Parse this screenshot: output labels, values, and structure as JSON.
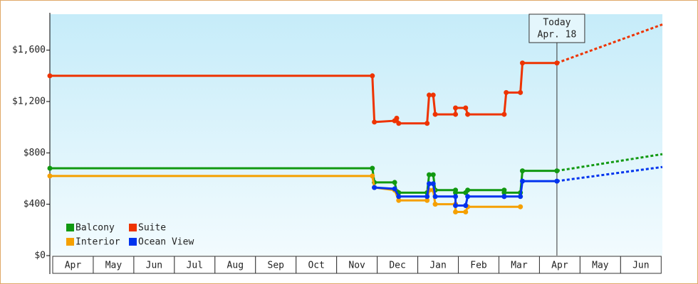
{
  "chart_data": {
    "type": "line",
    "xlim": [
      0,
      15.1
    ],
    "ylim": [
      0,
      1880
    ],
    "yticks": [
      {
        "value": 0,
        "label": "$0"
      },
      {
        "value": 400,
        "label": "$400"
      },
      {
        "value": 800,
        "label": "$800"
      },
      {
        "value": 1200,
        "label": "$1,200"
      },
      {
        "value": 1600,
        "label": "$1,600"
      }
    ],
    "xticks": [
      {
        "value": 0.5,
        "label": "Apr"
      },
      {
        "value": 1.5,
        "label": "May"
      },
      {
        "value": 2.5,
        "label": "Jun"
      },
      {
        "value": 3.5,
        "label": "Jul"
      },
      {
        "value": 4.5,
        "label": "Aug"
      },
      {
        "value": 5.5,
        "label": "Sep"
      },
      {
        "value": 6.5,
        "label": "Oct"
      },
      {
        "value": 7.5,
        "label": "Nov"
      },
      {
        "value": 8.5,
        "label": "Dec"
      },
      {
        "value": 9.5,
        "label": "Jan"
      },
      {
        "value": 10.5,
        "label": "Feb"
      },
      {
        "value": 11.5,
        "label": "Mar"
      },
      {
        "value": 12.5,
        "label": "Apr"
      },
      {
        "value": 13.5,
        "label": "May"
      },
      {
        "value": 14.5,
        "label": "Jun"
      }
    ],
    "annotation": {
      "x": 12.5,
      "lines": [
        "Today",
        "Apr. 18"
      ]
    },
    "series": [
      {
        "name": "Balcony",
        "color": "#119911",
        "x": [
          0,
          7.95,
          8.0,
          8.5,
          8.55,
          8.6,
          9.3,
          9.35,
          9.45,
          9.5,
          10.0,
          10.0,
          10.25,
          10.3,
          11.2,
          11.2,
          11.6,
          11.65,
          12.5
        ],
        "values": [
          680,
          680,
          570,
          570,
          500,
          490,
          490,
          630,
          630,
          510,
          510,
          490,
          490,
          510,
          510,
          490,
          490,
          660,
          660
        ],
        "projection": {
          "x": [
            12.5,
            15.1
          ],
          "values": [
            660,
            790
          ]
        }
      },
      {
        "name": "Suite",
        "color": "#ee3300",
        "x": [
          0,
          7.95,
          8.0,
          8.5,
          8.55,
          8.6,
          9.3,
          9.35,
          9.45,
          9.5,
          10.0,
          10.0,
          10.25,
          10.3,
          11.2,
          11.25,
          11.6,
          11.65,
          12.5
        ],
        "values": [
          1400,
          1400,
          1040,
          1050,
          1070,
          1030,
          1030,
          1250,
          1250,
          1100,
          1100,
          1150,
          1150,
          1100,
          1100,
          1270,
          1270,
          1500,
          1500
        ],
        "projection": {
          "x": [
            12.5,
            15.1
          ],
          "values": [
            1500,
            1800
          ]
        }
      },
      {
        "name": "Interior",
        "color": "#f5a000",
        "x": [
          0,
          7.95,
          8.0,
          8.5,
          8.6,
          9.3,
          9.35,
          9.45,
          9.5,
          10.0,
          10.0,
          10.25,
          10.3,
          11.6
        ],
        "values": [
          620,
          620,
          530,
          510,
          430,
          430,
          510,
          510,
          400,
          400,
          340,
          340,
          380,
          380
        ]
      },
      {
        "name": "Ocean View",
        "color": "#0033ee",
        "x": [
          8.0,
          8.5,
          8.6,
          9.3,
          9.35,
          9.45,
          9.5,
          10.0,
          10.0,
          10.25,
          10.3,
          11.2,
          11.2,
          11.6,
          11.65,
          12.5
        ],
        "values": [
          530,
          520,
          460,
          460,
          560,
          560,
          460,
          460,
          390,
          390,
          460,
          460,
          460,
          460,
          580,
          580
        ],
        "projection": {
          "x": [
            12.5,
            15.1
          ],
          "values": [
            580,
            690
          ]
        }
      }
    ]
  }
}
